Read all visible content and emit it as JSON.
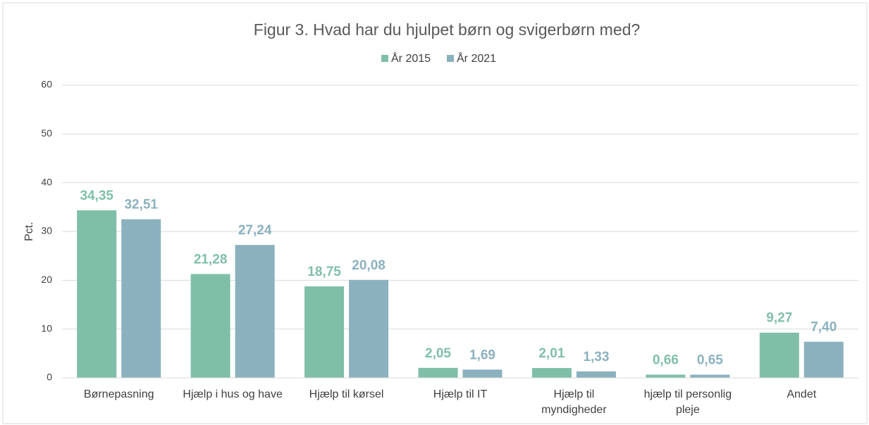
{
  "chart_data": {
    "type": "bar",
    "title": "Figur 3. Hvad har du hjulpet børn og svigerbørn med?",
    "ylabel": "Pct.",
    "categories": [
      "Børnepasning",
      "Hjælp i hus og have",
      "Hjælp til kørsel",
      "Hjælp til IT",
      "Hjælp til\nmyndigheder",
      "hjælp til personlig\npleje",
      "Andet"
    ],
    "series": [
      {
        "name": "År 2015",
        "color": "#7fbfa8",
        "values": [
          34.35,
          21.28,
          18.75,
          2.05,
          2.01,
          0.66,
          9.27
        ],
        "value_labels": [
          "34,35",
          "21,28",
          "18,75",
          "2,05",
          "2,01",
          "0,66",
          "9,27"
        ]
      },
      {
        "name": "År 2021",
        "color": "#8bb1bf",
        "values": [
          32.51,
          27.24,
          20.08,
          1.69,
          1.33,
          0.65,
          7.4
        ],
        "value_labels": [
          "32,51",
          "27,24",
          "20,08",
          "1,69",
          "1,33",
          "0,65",
          "7,40"
        ]
      }
    ],
    "ylim": [
      0,
      60
    ],
    "yticks": [
      0,
      10,
      20,
      30,
      40,
      50,
      60
    ],
    "grid": true,
    "legend": "top"
  }
}
